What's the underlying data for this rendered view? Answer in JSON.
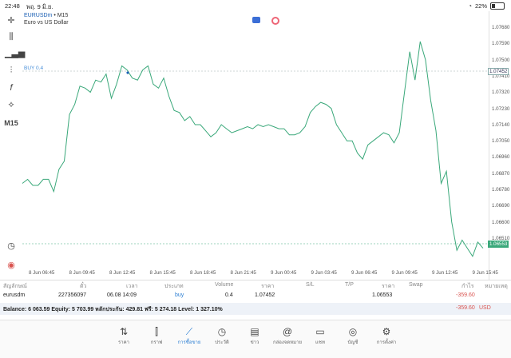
{
  "status": {
    "time": "22:48",
    "date": "พฤ. 9 มิ.ย.",
    "battery": "22%"
  },
  "chart": {
    "symbol": "EURUSDm",
    "timeframe_sep": " • M15",
    "description": "Euro vs US Dollar",
    "buy_label": "BUY 0.4",
    "timeframe_btn": "M15",
    "line_color": "#3aa87a",
    "current_price": "1.06553",
    "buy_price": "1.07452",
    "y_ticks": [
      "1.07680",
      "1.07590",
      "1.07500",
      "1.07410",
      "1.07320",
      "1.07230",
      "1.07140",
      "1.07050",
      "1.06960",
      "1.06870",
      "1.06780",
      "1.06690",
      "1.06600",
      "1.06510"
    ],
    "x_ticks": [
      "8 Jun 06:45",
      "8 Jun 09:45",
      "8 Jun 12:45",
      "8 Jun 15:45",
      "8 Jun 18:45",
      "8 Jun 21:45",
      "9 Jun 00:45",
      "9 Jun 03:45",
      "9 Jun 06:45",
      "9 Jun 09:45",
      "9 Jun 12:45",
      "9 Jun 15:45"
    ]
  },
  "chart_data": {
    "type": "line",
    "ylim": [
      1.0647,
      1.0774
    ],
    "series": [
      {
        "values": [
          1.0689,
          1.0691,
          1.0688,
          1.0688,
          1.0691,
          1.0691,
          1.0685,
          1.0696,
          1.07,
          1.0723,
          1.0728,
          1.0737,
          1.0736,
          1.0734,
          1.074,
          1.0739,
          1.0743,
          1.0731,
          1.0738,
          1.0747,
          1.0745,
          1.0741,
          1.074,
          1.0745,
          1.0747,
          1.0738,
          1.0736,
          1.0741,
          1.0732,
          1.0725,
          1.0724,
          1.072,
          1.0722,
          1.0718,
          1.0718,
          1.0715,
          1.0712,
          1.0714,
          1.0718,
          1.0716,
          1.0714,
          1.0715,
          1.0716,
          1.0717,
          1.0716,
          1.0718,
          1.0717,
          1.0718,
          1.0717,
          1.0716,
          1.0716,
          1.0713,
          1.0713,
          1.0714,
          1.0717,
          1.0724,
          1.0727,
          1.0729,
          1.0728,
          1.0726,
          1.0718,
          1.0714,
          1.071,
          1.071,
          1.0704,
          1.0701,
          1.0708,
          1.071,
          1.0712,
          1.0714,
          1.0713,
          1.0709,
          1.0714,
          1.0734,
          1.0754,
          1.074,
          1.0759,
          1.075,
          1.073,
          1.0715,
          1.0689,
          1.0695,
          1.067,
          1.0656,
          1.0661,
          1.0657,
          1.0653,
          1.066,
          1.0657
        ]
      }
    ]
  },
  "trade": {
    "headers": [
      "สัญลักษณ์",
      "ตั๋ว",
      "เวลา",
      "ประเภท",
      "Volume",
      "ราคา",
      "S/L",
      "T/P",
      "ราคา",
      "Swap",
      "กำไร",
      "หมายเหตุ"
    ],
    "row": {
      "symbol": "eurusdm",
      "ticket": "227356097",
      "time": "06.08 14:09",
      "type": "buy",
      "volume": "0.4",
      "price": "1.07452",
      "current": "1.06553",
      "profit": "-359.60"
    },
    "balance": "Balance: 6 063.59 Equity: 5 703.99 หลักประกัน: 429.81 ฟรี: 5 274.18 Level: 1 327.10%",
    "total": "-359.60",
    "currency": "USD"
  },
  "tabs": [
    {
      "label": "ราคา",
      "icon": "arrows-updown-icon"
    },
    {
      "label": "กราฟ",
      "icon": "candles-icon"
    },
    {
      "label": "การซื้อขาย",
      "icon": "trade-chart-icon"
    },
    {
      "label": "ประวัติ",
      "icon": "history-icon"
    },
    {
      "label": "ข่าว",
      "icon": "news-icon"
    },
    {
      "label": "กล่องจดหมาย",
      "icon": "mail-at-icon"
    },
    {
      "label": "แชท",
      "icon": "chat-icon"
    },
    {
      "label": "บัญชี",
      "icon": "account-icon"
    },
    {
      "label": "การตั้งค่า",
      "icon": "settings-icon"
    }
  ]
}
